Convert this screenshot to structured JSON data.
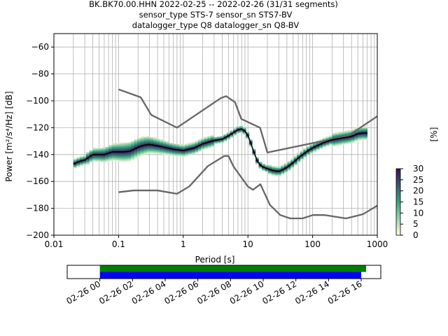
{
  "header": {
    "line1": "BK.BK70.00.HHN   2022-02-25 -- 2022-02-26  (31/31 segments)",
    "line2": "sensor_type STS-7 sensor_sn STS7-BV",
    "line3": "datalogger_type Q8 datalogger_sn Q8-BV"
  },
  "colors": {
    "noise_model": "#666666",
    "mode_line": "#000000",
    "cmap_low": "#ffffe0",
    "cmap_mid": "#34a77d",
    "cmap_high": "#3b0f5c",
    "bar_green": "#008000",
    "bar_blue": "#0000ff"
  },
  "chart_data": [
    {
      "type": "heatmap",
      "xscale": "log",
      "xlabel": "Period [s]",
      "ylabel": "Power [m²/s⁴/Hz] [dB]",
      "xlim": [
        0.01,
        1000
      ],
      "ylim": [
        -200,
        -50
      ],
      "xticks": [
        0.01,
        0.1,
        1,
        10,
        100,
        1000
      ],
      "xtick_labels": [
        "0.01",
        "0.1",
        "1",
        "10",
        "100",
        "1000"
      ],
      "yticks": [
        -200,
        -180,
        -160,
        -140,
        -120,
        -100,
        -80,
        -60
      ],
      "grid": true,
      "colorbar": {
        "label": "[%]",
        "range": [
          0,
          30
        ],
        "ticks": [
          "0",
          "5",
          "10",
          "15",
          "20",
          "25",
          "30"
        ]
      },
      "nhnm": {
        "period": [
          0.1,
          0.22,
          0.32,
          0.8,
          3.8,
          4.6,
          6.3,
          7.9,
          15.4,
          20,
          354.8,
          1000
        ],
        "power": [
          -91.5,
          -97.4,
          -110.5,
          -120,
          -98,
          -96.5,
          -101,
          -113.5,
          -120,
          -138.5,
          -126,
          -111.5
        ]
      },
      "nlnm": {
        "period": [
          0.1,
          0.17,
          0.4,
          0.8,
          1.24,
          2.4,
          4.3,
          5,
          6,
          10,
          12,
          15.6,
          21.9,
          31.6,
          45,
          70,
          101,
          154,
          328,
          600,
          1000
        ],
        "power": [
          -168,
          -166.7,
          -166.7,
          -169.2,
          -163.7,
          -148.6,
          -141.1,
          -141.1,
          -149,
          -163.8,
          -166.2,
          -162.1,
          -177.5,
          -185,
          -187.5,
          -187.5,
          -185,
          -185,
          -187.5,
          -184.4,
          -178
        ]
      },
      "mode": {
        "period": [
          0.02,
          0.025,
          0.03,
          0.04,
          0.06,
          0.08,
          0.12,
          0.15,
          0.2,
          0.25,
          0.3,
          0.4,
          0.5,
          0.7,
          1,
          1.5,
          2,
          3,
          4,
          5,
          6,
          7,
          8,
          9,
          10,
          11,
          12,
          14,
          16,
          20,
          25,
          30,
          35,
          40,
          50,
          60,
          80,
          100,
          150,
          200,
          300,
          400,
          500,
          600,
          700
        ],
        "power": [
          -147,
          -145,
          -144,
          -140,
          -140,
          -138,
          -138,
          -137.5,
          -134.5,
          -133,
          -132.5,
          -133.5,
          -134.5,
          -136,
          -137,
          -135,
          -132,
          -129.5,
          -128.5,
          -126,
          -123.5,
          -121.5,
          -121,
          -122.5,
          -126,
          -131,
          -136.5,
          -145,
          -148.5,
          -150.5,
          -152,
          -152.5,
          -151,
          -149.5,
          -146,
          -142.5,
          -138,
          -135,
          -131,
          -129,
          -127.5,
          -126.5,
          -124.5,
          -124,
          -124
        ]
      }
    },
    {
      "type": "bar",
      "x_tick_labels": [
        "02-26 00",
        "02-26 02",
        "02-26 04",
        "02-26 06",
        "02-26 08",
        "02-26 10",
        "02-26 12",
        "02-26 14",
        "02-26 16"
      ],
      "xlim_hours": [
        -2,
        17.2
      ],
      "segments": [
        {
          "color": "green",
          "start_hours": 0,
          "end_hours": 16.3
        },
        {
          "color": "blue",
          "start_hours": 0,
          "end_hours": 16.0
        }
      ]
    }
  ]
}
